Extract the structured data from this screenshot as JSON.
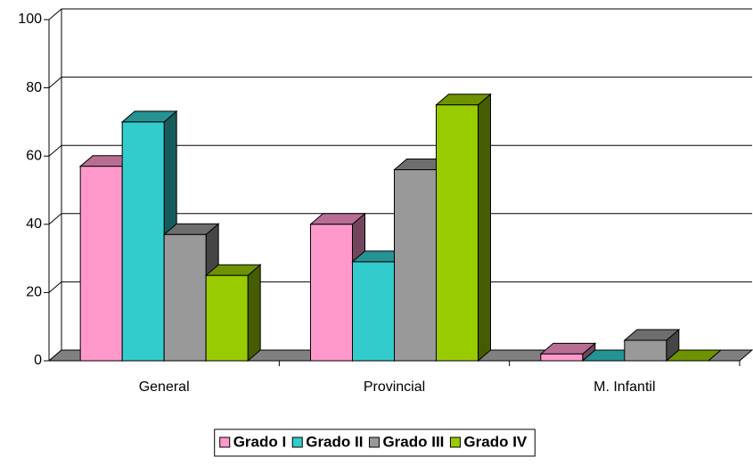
{
  "chart_data": {
    "type": "bar3d",
    "categories": [
      "General",
      "Provincial",
      "M. Infantil"
    ],
    "series": [
      {
        "name": "Grado I",
        "color": "#ff99cc",
        "values": [
          57,
          40,
          2
        ]
      },
      {
        "name": "Grado II",
        "color": "#33cccc",
        "values": [
          70,
          29,
          0
        ]
      },
      {
        "name": "Grado III",
        "color": "#999999",
        "values": [
          37,
          56,
          6
        ]
      },
      {
        "name": "Grado IV",
        "color": "#99cc00",
        "values": [
          25,
          75,
          0
        ]
      }
    ],
    "ylim": [
      0,
      100
    ],
    "yticks": [
      0,
      20,
      40,
      60,
      80,
      100
    ],
    "grid": true,
    "legend": "bottom"
  }
}
